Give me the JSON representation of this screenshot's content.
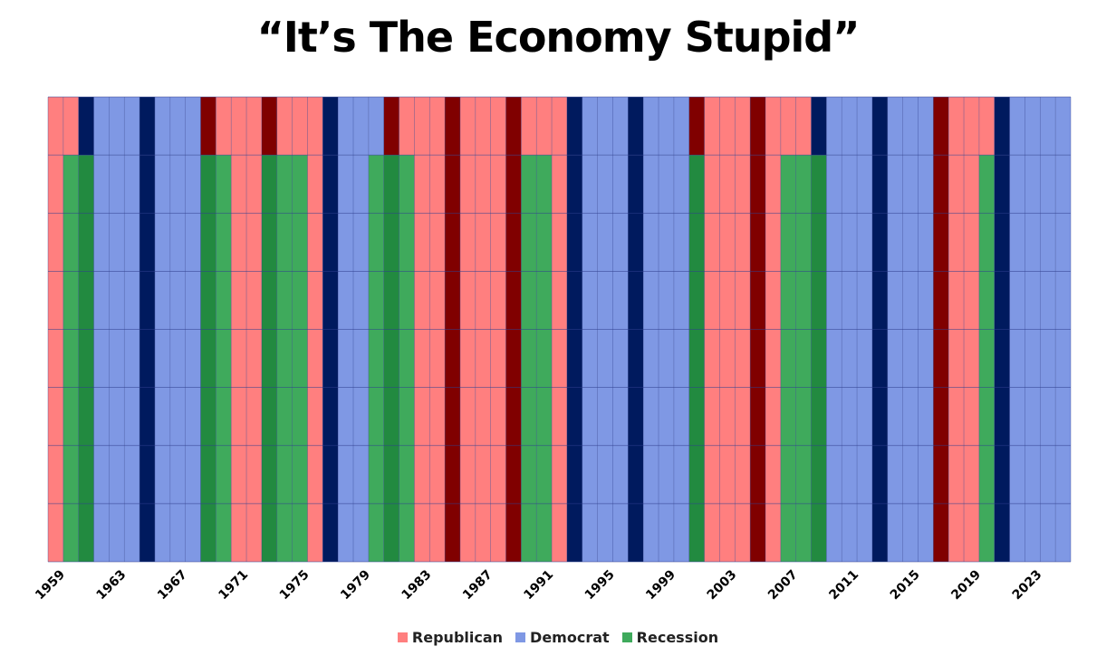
{
  "chart_data": {
    "type": "heatmap",
    "title": "“It’s The Economy Stupid”",
    "xlabel": "",
    "ylabel": "",
    "years": [
      1959,
      1960,
      1961,
      1962,
      1963,
      1964,
      1965,
      1966,
      1967,
      1968,
      1969,
      1970,
      1971,
      1972,
      1973,
      1974,
      1975,
      1976,
      1977,
      1978,
      1979,
      1980,
      1981,
      1982,
      1983,
      1984,
      1985,
      1986,
      1987,
      1988,
      1989,
      1990,
      1991,
      1992,
      1993,
      1994,
      1995,
      1996,
      1997,
      1998,
      1999,
      2000,
      2001,
      2002,
      2003,
      2004,
      2005,
      2006,
      2007,
      2008,
      2009,
      2010,
      2011,
      2012,
      2013,
      2014,
      2015,
      2016,
      2017,
      2018,
      2019,
      2020,
      2021,
      2022,
      2023,
      2024,
      2025
    ],
    "tick_labels": [
      "1959",
      "1963",
      "1967",
      "1971",
      "1975",
      "1979",
      "1983",
      "1987",
      "1991",
      "1995",
      "1999",
      "2003",
      "2007",
      "2011",
      "2015",
      "2019",
      "2023"
    ],
    "party": [
      "R",
      "R",
      "D",
      "D",
      "D",
      "D",
      "D",
      "D",
      "D",
      "D",
      "R",
      "R",
      "R",
      "R",
      "R",
      "R",
      "R",
      "R",
      "D",
      "D",
      "D",
      "D",
      "R",
      "R",
      "R",
      "R",
      "R",
      "R",
      "R",
      "R",
      "R",
      "R",
      "R",
      "R",
      "D",
      "D",
      "D",
      "D",
      "D",
      "D",
      "D",
      "D",
      "R",
      "R",
      "R",
      "R",
      "R",
      "R",
      "R",
      "R",
      "D",
      "D",
      "D",
      "D",
      "D",
      "D",
      "D",
      "D",
      "R",
      "R",
      "R",
      "R",
      "D",
      "D",
      "D",
      "D",
      "D"
    ],
    "election_year": [
      false,
      false,
      true,
      false,
      false,
      false,
      true,
      false,
      false,
      false,
      true,
      false,
      false,
      false,
      true,
      false,
      false,
      false,
      true,
      false,
      false,
      false,
      true,
      false,
      false,
      false,
      true,
      false,
      false,
      false,
      true,
      false,
      false,
      false,
      true,
      false,
      false,
      false,
      true,
      false,
      false,
      false,
      true,
      false,
      false,
      false,
      true,
      false,
      false,
      false,
      true,
      false,
      false,
      false,
      true,
      false,
      false,
      false,
      true,
      false,
      false,
      false,
      true,
      false,
      false,
      false,
      false
    ],
    "recession_years": [
      1960,
      1961,
      1969,
      1970,
      1973,
      1974,
      1975,
      1980,
      1981,
      1982,
      1990,
      1991,
      2001,
      2007,
      2008,
      2009,
      2020
    ],
    "ylim": [
      0,
      8
    ],
    "band_rows": 8,
    "grid": true,
    "legend_position": "bottom",
    "legend": [
      {
        "name": "Republican",
        "color": "#ff7f7f"
      },
      {
        "name": "Democrat",
        "color": "#7f98e4"
      },
      {
        "name": "Recession",
        "color": "#3faa5c"
      }
    ],
    "colors": {
      "republican": "#ff7f7f",
      "republican_election": "#800000",
      "democrat": "#7f98e4",
      "democrat_election": "#001a5e",
      "recession": "#3faa5c",
      "grid": "#2f3f8f"
    }
  }
}
